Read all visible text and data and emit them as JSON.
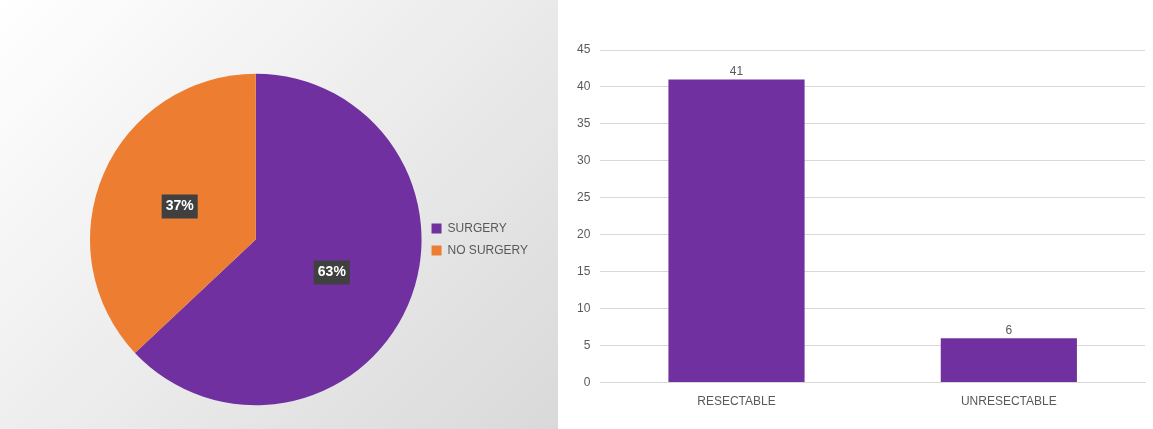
{
  "chart_data": [
    {
      "type": "pie",
      "categories": [
        "SURGERY",
        "NO SURGERY"
      ],
      "values": [
        63,
        37
      ],
      "colors": [
        "#7030a0",
        "#ed7d31"
      ],
      "value_labels": [
        "63%",
        "37%"
      ],
      "legend": "right"
    },
    {
      "type": "bar",
      "categories": [
        "RESECTABLE",
        "UNRESECTABLE"
      ],
      "values": [
        41,
        6
      ],
      "color": "#7030a0",
      "ylim": [
        0,
        45
      ],
      "yticks": [
        0,
        5,
        10,
        15,
        20,
        25,
        30,
        35,
        40,
        45
      ],
      "grid": "y",
      "data_labels": true
    }
  ]
}
